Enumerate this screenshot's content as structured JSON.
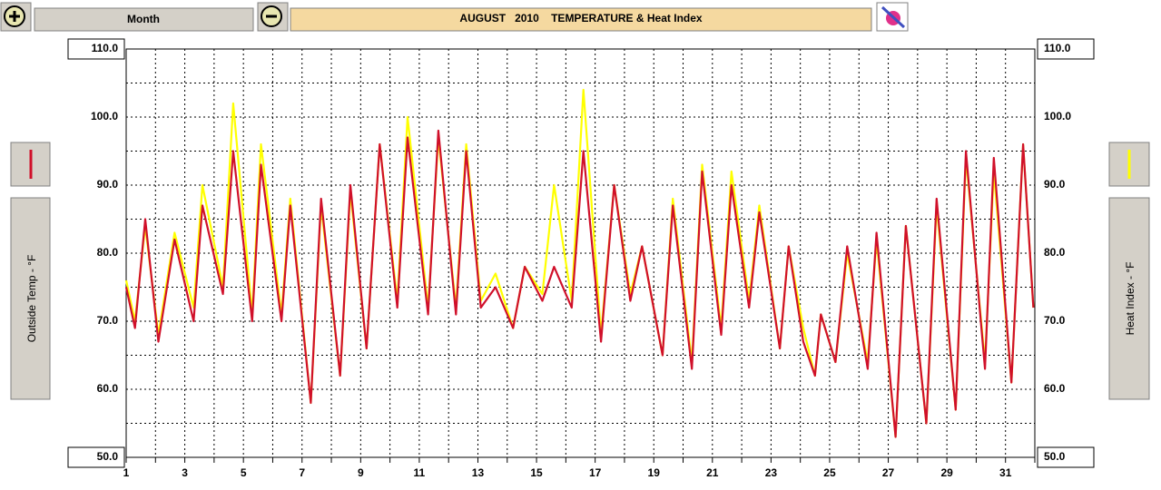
{
  "toolbar": {
    "period": "Month"
  },
  "chart_data": {
    "type": "line",
    "title": "AUGUST   2010    TEMPERATURE & Heat Index",
    "y_label": "Outside Temp - °F",
    "y2_label": "Heat Index - °F",
    "x": [
      1,
      1.3,
      1.65,
      2.1,
      2.65,
      3.3,
      3.6,
      4.3,
      4.65,
      5.3,
      5.6,
      6.3,
      6.6,
      7.3,
      7.65,
      8.3,
      8.65,
      9.2,
      9.65,
      10.25,
      10.6,
      11.3,
      11.65,
      12.25,
      12.6,
      13.1,
      13.6,
      14.2,
      14.6,
      15.2,
      15.6,
      16.2,
      16.6,
      17.2,
      17.65,
      18.2,
      18.6,
      19.3,
      19.65,
      20.3,
      20.65,
      21.3,
      21.65,
      22.25,
      22.6,
      23.3,
      23.6,
      24.1,
      24.5,
      24.7,
      25.2,
      25.6,
      26.3,
      26.6,
      27.25,
      27.6,
      28.3,
      28.65,
      29.3,
      29.65,
      30.3,
      30.6,
      31.2,
      31.6,
      31.95
    ],
    "series": [
      {
        "name": "Heat Index",
        "color": "#ffff00",
        "axis": "y2",
        "values": [
          76,
          70,
          84,
          68,
          83,
          72,
          90,
          75,
          102,
          71,
          96,
          71,
          88,
          58,
          87,
          62,
          89,
          66,
          96,
          73,
          100,
          72,
          97,
          72,
          96,
          73,
          77,
          69,
          78,
          74,
          90,
          73,
          104,
          68,
          90,
          74,
          81,
          65,
          88,
          64,
          93,
          69,
          92,
          73,
          87,
          66,
          81,
          69,
          62,
          71,
          64,
          80,
          64,
          82,
          53,
          84,
          55,
          87,
          57,
          94,
          64,
          92,
          61,
          96,
          72
        ]
      },
      {
        "name": "Outside Temp",
        "color": "#d0102a",
        "values": [
          75,
          69,
          85,
          67,
          82,
          70,
          87,
          74,
          95,
          70,
          93,
          70,
          87,
          58,
          88,
          62,
          90,
          66,
          96,
          72,
          97,
          71,
          98,
          71,
          95,
          72,
          75,
          69,
          78,
          73,
          78,
          72,
          95,
          67,
          90,
          73,
          81,
          65,
          87,
          63,
          92,
          68,
          90,
          72,
          86,
          66,
          81,
          67,
          62,
          71,
          64,
          81,
          63,
          83,
          53,
          84,
          55,
          88,
          57,
          95,
          63,
          94,
          61,
          96,
          72
        ]
      }
    ],
    "xlim": [
      1,
      32
    ],
    "xticks": [
      1,
      3,
      5,
      7,
      9,
      11,
      13,
      15,
      17,
      19,
      21,
      23,
      25,
      27,
      29,
      31
    ],
    "minor_xticks": [
      2,
      4,
      6,
      8,
      10,
      12,
      14,
      16,
      18,
      20,
      22,
      24,
      26,
      28,
      30,
      32
    ],
    "ylim": [
      50,
      110
    ],
    "yticks": [
      {
        "value": 50,
        "label": "50.0"
      },
      {
        "value": 60,
        "label": "60.0"
      },
      {
        "value": 70,
        "label": "70.0"
      },
      {
        "value": 80,
        "label": "80.0"
      },
      {
        "value": 90,
        "label": "90.0"
      },
      {
        "value": 100,
        "label": "100.0"
      },
      {
        "value": 110,
        "label": "110.0"
      }
    ],
    "minor_yticks": [
      55,
      65,
      75,
      85,
      95,
      105
    ],
    "y2lim": [
      50,
      110
    ],
    "y2ticks": [
      {
        "value": 50,
        "label": "50.0"
      },
      {
        "value": 60,
        "label": "60.0"
      },
      {
        "value": 70,
        "label": "70.0"
      },
      {
        "value": 80,
        "label": "80.0"
      },
      {
        "value": 90,
        "label": "90.0"
      },
      {
        "value": 100,
        "label": "100.0"
      },
      {
        "value": 110,
        "label": "110.0"
      }
    ],
    "grid": true
  }
}
